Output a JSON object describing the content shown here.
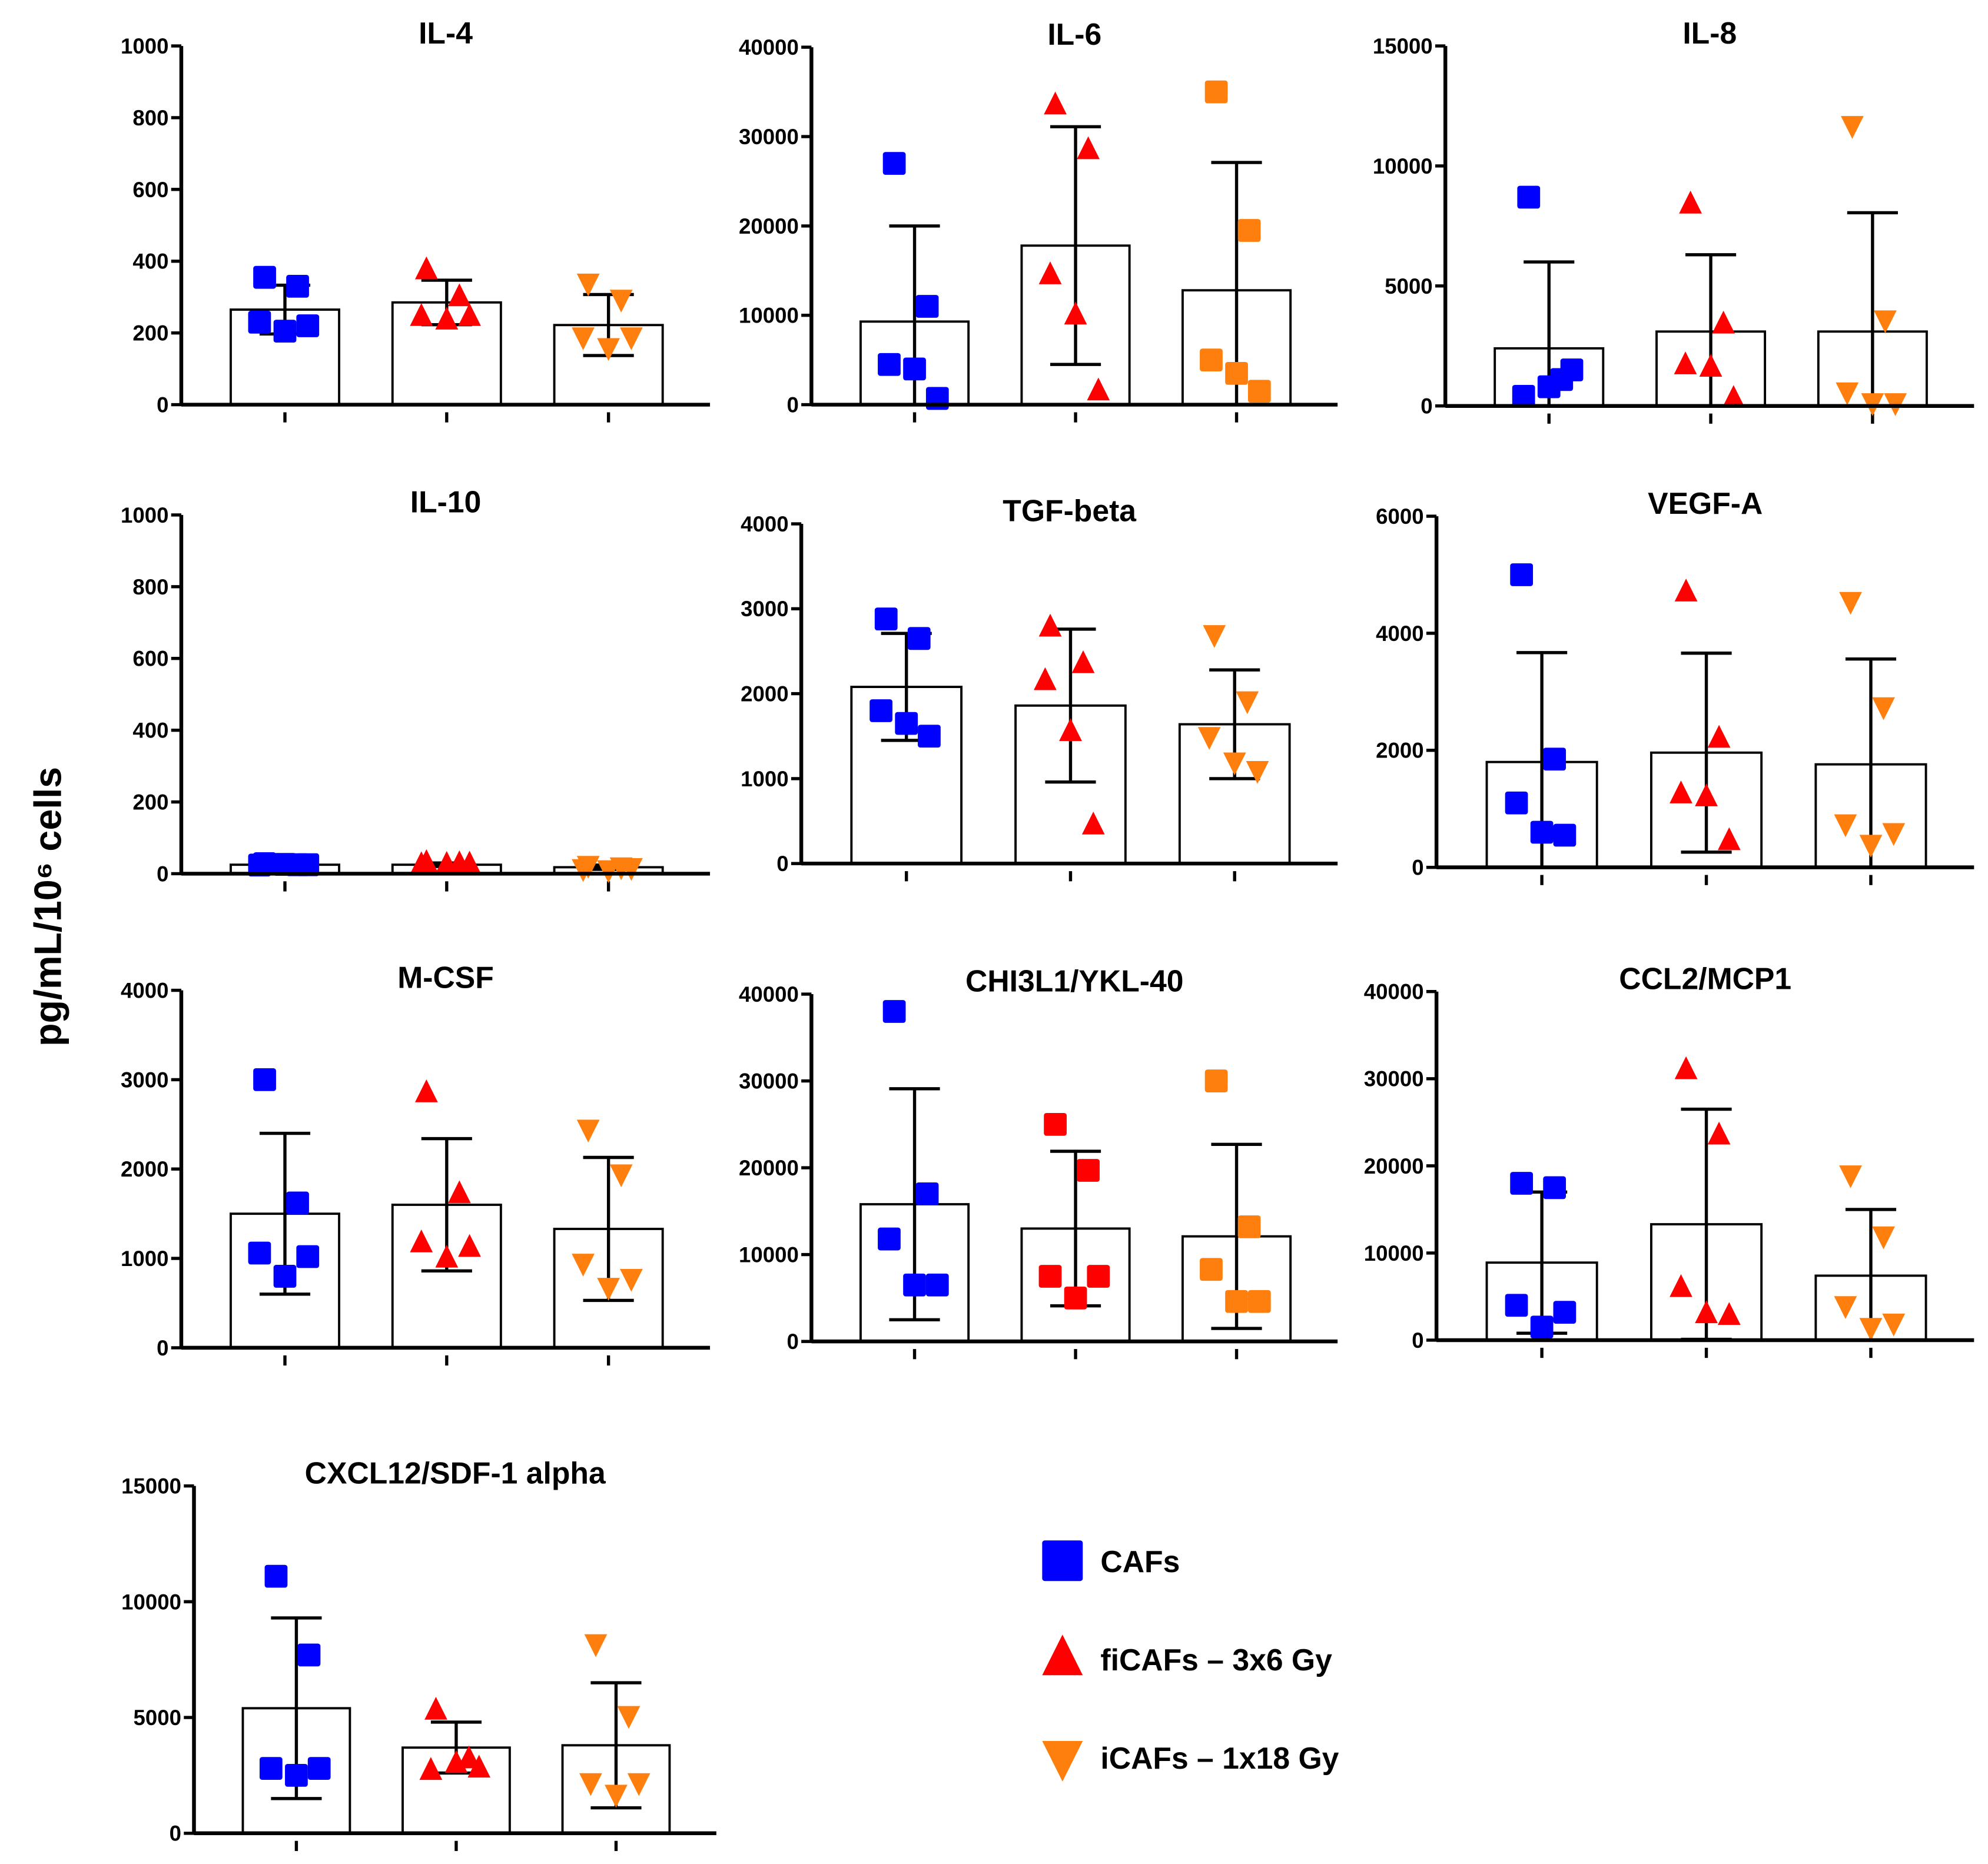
{
  "ylabel": "pg/mL/10⁶ cells",
  "legend": [
    {
      "label": "CAFs",
      "color": "#0000ff",
      "marker": "square"
    },
    {
      "label": "fiCAFs – 3x6 Gy",
      "color": "#ff0000",
      "marker": "triangle-up"
    },
    {
      "label": "iCAFs – 1x18 Gy",
      "color": "#ff7f0e",
      "marker": "triangle-down"
    }
  ],
  "chart_data": [
    {
      "type": "bar",
      "title": "IL-4",
      "ylim": [
        0,
        1000
      ],
      "yticks": [
        0,
        200,
        400,
        600,
        800,
        1000
      ],
      "categories": [
        "CAFs",
        "fiCAFs – 3x6 Gy",
        "iCAFs – 1x18 Gy"
      ],
      "series": [
        {
          "name": "CAFs",
          "mean": 265,
          "sd": 68,
          "points": [
            355,
            330,
            230,
            205,
            220
          ]
        },
        {
          "name": "fiCAFs – 3x6 Gy",
          "mean": 285,
          "sd": 62,
          "points": [
            375,
            300,
            245,
            235,
            245
          ]
        },
        {
          "name": "iCAFs – 1x18 Gy",
          "mean": 222,
          "sd": 85,
          "points": [
            340,
            295,
            190,
            160,
            190
          ]
        }
      ]
    },
    {
      "type": "bar",
      "title": "IL-6",
      "ylim": [
        0,
        40000
      ],
      "yticks": [
        0,
        10000,
        20000,
        30000,
        40000
      ],
      "categories": [
        "CAFs",
        "fiCAFs – 3x6 Gy",
        "iCAFs – 1x18 Gy"
      ],
      "series": [
        {
          "name": "CAFs",
          "mean": 9300,
          "sd": 10700,
          "points": [
            27000,
            11000,
            4500,
            4000,
            700
          ]
        },
        {
          "name": "fiCAFs – 3x6 Gy",
          "mean": 17800,
          "sd": 13300,
          "points": [
            33500,
            28500,
            14500,
            10000,
            1500
          ]
        },
        {
          "name": "iCAFs – 1x18 Gy",
          "mean": 12800,
          "sd": 14300,
          "points": [
            35000,
            19500,
            5000,
            3500,
            1500
          ],
          "marker": "square"
        }
      ]
    },
    {
      "type": "bar",
      "title": "IL-8",
      "ylim": [
        0,
        15000
      ],
      "yticks": [
        0,
        5000,
        10000,
        15000
      ],
      "categories": [
        "CAFs",
        "fiCAFs – 3x6 Gy",
        "iCAFs – 1x18 Gy"
      ],
      "series": [
        {
          "name": "CAFs",
          "mean": 2400,
          "sd": 3600,
          "points": [
            8700,
            1100,
            400,
            800,
            1500
          ]
        },
        {
          "name": "fiCAFs – 3x6 Gy",
          "mean": 3100,
          "sd": 3200,
          "points": [
            8400,
            3400,
            1700,
            1600,
            300
          ]
        },
        {
          "name": "iCAFs – 1x18 Gy",
          "mean": 3100,
          "sd": 4950,
          "points": [
            11700,
            3600,
            600,
            150,
            150
          ]
        }
      ]
    },
    {
      "type": "bar",
      "title": "IL-10",
      "ylim": [
        0,
        1000
      ],
      "yticks": [
        0,
        200,
        400,
        600,
        800,
        1000
      ],
      "categories": [
        "CAFs",
        "fiCAFs – 3x6 Gy",
        "iCAFs – 1x18 Gy"
      ],
      "series": [
        {
          "name": "CAFs",
          "mean": 25,
          "sd": 4,
          "points": [
            28,
            25,
            24,
            26,
            25
          ]
        },
        {
          "name": "fiCAFs – 3x6 Gy",
          "mean": 25,
          "sd": 5,
          "points": [
            30,
            27,
            24,
            25,
            26
          ]
        },
        {
          "name": "iCAFs – 1x18 Gy",
          "mean": 18,
          "sd": 6,
          "points": [
            24,
            20,
            15,
            12,
            18
          ]
        }
      ]
    },
    {
      "type": "bar",
      "title": "TGF-beta",
      "ylim": [
        0,
        4000
      ],
      "yticks": [
        0,
        1000,
        2000,
        3000,
        4000
      ],
      "categories": [
        "CAFs",
        "fiCAFs – 3x6 Gy",
        "iCAFs – 1x18 Gy"
      ],
      "series": [
        {
          "name": "CAFs",
          "mean": 2080,
          "sd": 630,
          "points": [
            2880,
            2650,
            1800,
            1650,
            1500
          ]
        },
        {
          "name": "fiCAFs – 3x6 Gy",
          "mean": 1860,
          "sd": 900,
          "points": [
            2780,
            2350,
            2150,
            1550,
            450
          ]
        },
        {
          "name": "iCAFs – 1x18 Gy",
          "mean": 1640,
          "sd": 640,
          "points": [
            2700,
            1920,
            1500,
            1200,
            1100
          ]
        }
      ]
    },
    {
      "type": "bar",
      "title": "VEGF-A",
      "ylim": [
        0,
        6000
      ],
      "yticks": [
        0,
        2000,
        4000,
        6000
      ],
      "categories": [
        "CAFs",
        "fiCAFs – 3x6 Gy",
        "iCAFs – 1x18 Gy"
      ],
      "series": [
        {
          "name": "CAFs",
          "mean": 1800,
          "sd": 1870,
          "points": [
            5000,
            1850,
            1100,
            600,
            550
          ]
        },
        {
          "name": "fiCAFs – 3x6 Gy",
          "mean": 1960,
          "sd": 1700,
          "points": [
            4700,
            2200,
            1250,
            1200,
            450
          ]
        },
        {
          "name": "iCAFs – 1x18 Gy",
          "mean": 1760,
          "sd": 1800,
          "points": [
            4550,
            2750,
            750,
            400,
            600
          ]
        }
      ]
    },
    {
      "type": "bar",
      "title": "M-CSF",
      "ylim": [
        0,
        4000
      ],
      "yticks": [
        0,
        1000,
        2000,
        3000,
        4000
      ],
      "categories": [
        "CAFs",
        "fiCAFs – 3x6 Gy",
        "iCAFs – 1x18 Gy"
      ],
      "series": [
        {
          "name": "CAFs",
          "mean": 1500,
          "sd": 900,
          "points": [
            3000,
            1620,
            1060,
            800,
            1020
          ]
        },
        {
          "name": "fiCAFs – 3x6 Gy",
          "mean": 1600,
          "sd": 740,
          "points": [
            2850,
            1720,
            1170,
            1000,
            1120
          ]
        },
        {
          "name": "iCAFs – 1x18 Gy",
          "mean": 1330,
          "sd": 800,
          "points": [
            2450,
            1950,
            950,
            680,
            780
          ]
        }
      ]
    },
    {
      "type": "bar",
      "title": "CHI3L1/YKL-40",
      "ylim": [
        0,
        40000
      ],
      "yticks": [
        0,
        10000,
        20000,
        30000,
        40000
      ],
      "categories": [
        "CAFs",
        "fiCAFs – 3x6 Gy",
        "iCAFs – 1x18 Gy"
      ],
      "series": [
        {
          "name": "CAFs",
          "mean": 15800,
          "sd": 13300,
          "points": [
            38000,
            17000,
            11800,
            6500,
            6500
          ]
        },
        {
          "name": "fiCAFs – 3x6 Gy",
          "mean": 13000,
          "sd": 8900,
          "points": [
            25000,
            19700,
            7500,
            5000,
            7500
          ],
          "marker": "square"
        },
        {
          "name": "iCAFs – 1x18 Gy",
          "mean": 12100,
          "sd": 10600,
          "points": [
            30000,
            13200,
            8300,
            4600,
            4600
          ],
          "marker": "square"
        }
      ]
    },
    {
      "type": "bar",
      "title": "CCL2/MCP1",
      "ylim": [
        0,
        40000
      ],
      "yticks": [
        0,
        10000,
        20000,
        30000,
        40000
      ],
      "categories": [
        "CAFs",
        "fiCAFs – 3x6 Gy",
        "iCAFs – 1x18 Gy"
      ],
      "series": [
        {
          "name": "CAFs",
          "mean": 8900,
          "sd": 8100,
          "points": [
            18000,
            17500,
            4000,
            1500,
            3200
          ]
        },
        {
          "name": "fiCAFs – 3x6 Gy",
          "mean": 13300,
          "sd": 13200,
          "points": [
            31000,
            23500,
            6000,
            3000,
            2800
          ]
        },
        {
          "name": "iCAFs – 1x18 Gy",
          "mean": 7400,
          "sd": 7600,
          "points": [
            19000,
            12000,
            4000,
            1500,
            2000
          ]
        }
      ]
    },
    {
      "type": "bar",
      "title": "CXCL12/SDF-1 alpha",
      "ylim": [
        0,
        15000
      ],
      "yticks": [
        0,
        5000,
        10000,
        15000
      ],
      "categories": [
        "CAFs",
        "fiCAFs – 3x6 Gy",
        "iCAFs – 1x18 Gy"
      ],
      "series": [
        {
          "name": "CAFs",
          "mean": 5400,
          "sd": 3900,
          "points": [
            11100,
            7700,
            2800,
            2500,
            2800
          ]
        },
        {
          "name": "fiCAFs – 3x6 Gy",
          "mean": 3700,
          "sd": 1100,
          "points": [
            5300,
            3200,
            2700,
            3000,
            2800
          ]
        },
        {
          "name": "iCAFs – 1x18 Gy",
          "mean": 3800,
          "sd": 2700,
          "points": [
            8200,
            5100,
            2200,
            1700,
            2200
          ]
        }
      ]
    }
  ]
}
